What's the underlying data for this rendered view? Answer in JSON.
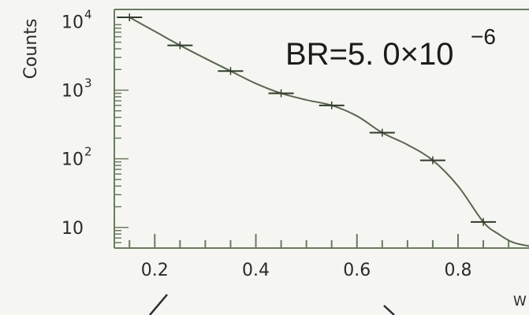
{
  "chart_data": {
    "type": "line",
    "title": "",
    "xlabel": "W",
    "ylabel": "Counts",
    "yscale": "log",
    "xlim": [
      0.12,
      0.97
    ],
    "ylim": [
      5,
      15000
    ],
    "x_ticks": [
      0.2,
      0.4,
      0.6,
      0.8
    ],
    "x_tick_labels": [
      "0.2",
      "0.4",
      "0.6",
      "0.8"
    ],
    "y_ticks": [
      10,
      100,
      1000,
      10000
    ],
    "y_tick_labels": [
      {
        "base": "10",
        "exp": ""
      },
      {
        "base": "10",
        "exp": "2"
      },
      {
        "base": "10",
        "exp": "3"
      },
      {
        "base": "10",
        "exp": "4"
      }
    ],
    "annotation": {
      "prefix": "BR=5. 0×10",
      "exp": "−6"
    },
    "points": [
      {
        "x": 0.15,
        "y": 11500
      },
      {
        "x": 0.25,
        "y": 4500
      },
      {
        "x": 0.35,
        "y": 1900
      },
      {
        "x": 0.45,
        "y": 900
      },
      {
        "x": 0.55,
        "y": 600
      },
      {
        "x": 0.65,
        "y": 240
      },
      {
        "x": 0.75,
        "y": 95
      },
      {
        "x": 0.85,
        "y": 12
      }
    ],
    "curve": [
      [
        0.15,
        11500
      ],
      [
        0.2,
        7200
      ],
      [
        0.25,
        4500
      ],
      [
        0.3,
        2900
      ],
      [
        0.35,
        1900
      ],
      [
        0.4,
        1250
      ],
      [
        0.45,
        900
      ],
      [
        0.5,
        720
      ],
      [
        0.55,
        600
      ],
      [
        0.6,
        420
      ],
      [
        0.65,
        240
      ],
      [
        0.7,
        160
      ],
      [
        0.75,
        95
      ],
      [
        0.8,
        40
      ],
      [
        0.85,
        12
      ],
      [
        0.88,
        8
      ],
      [
        0.91,
        6
      ],
      [
        0.95,
        5.2
      ]
    ],
    "grid": false,
    "colors": {
      "line": "#5a6650",
      "frame": "#6b7a62",
      "text": "#2a2a2a"
    }
  }
}
